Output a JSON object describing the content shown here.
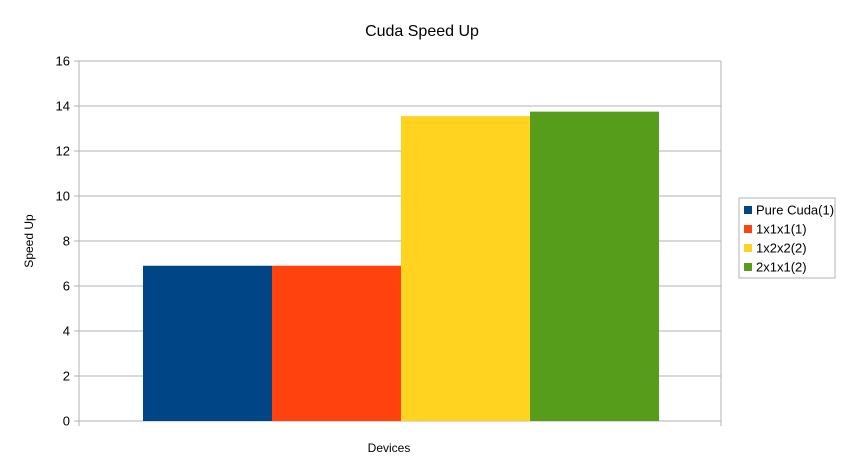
{
  "chart_data": {
    "type": "bar",
    "title": "Cuda Speed Up",
    "xlabel": "Devices",
    "ylabel": "Speed Up",
    "ylim": [
      0,
      16
    ],
    "yticks": [
      0,
      2,
      4,
      6,
      8,
      10,
      12,
      14,
      16
    ],
    "grid": true,
    "legend_position": "right",
    "series": [
      {
        "name": "Pure Cuda(1)",
        "value": 6.9,
        "color": "#004586"
      },
      {
        "name": "1x1x1(1)",
        "value": 6.9,
        "color": "#ff420e"
      },
      {
        "name": "1x2x2(2)",
        "value": 13.55,
        "color": "#ffd320"
      },
      {
        "name": "2x1x1(2)",
        "value": 13.75,
        "color": "#579d1c"
      }
    ]
  }
}
